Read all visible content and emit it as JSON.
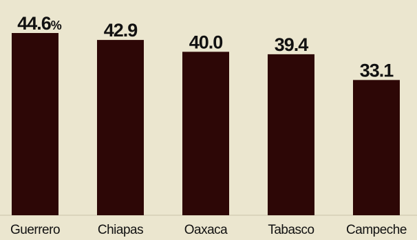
{
  "chart_data": {
    "type": "bar",
    "categories": [
      "Guerrero",
      "Chiapas",
      "Oaxaca",
      "Tabasco",
      "Campeche"
    ],
    "values": [
      44.6,
      42.9,
      40.0,
      39.4,
      33.1
    ],
    "data_labels": [
      "44.6",
      "42.9",
      "40.0",
      "39.4",
      "33.1"
    ],
    "first_label_suffix": "%",
    "title": "",
    "xlabel": "",
    "ylabel": "",
    "ylim": [
      0,
      44.6
    ],
    "grid": false,
    "bar_color": "#2d0706",
    "background_color": "#ebe6cf"
  }
}
